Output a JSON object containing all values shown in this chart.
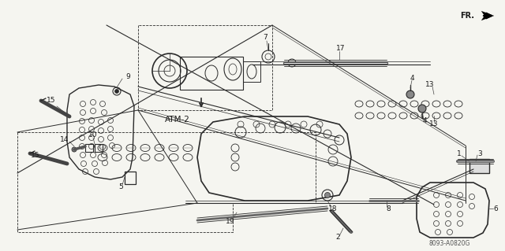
{
  "bg_color": "#f5f5f0",
  "line_color": "#2a2a2a",
  "label_color": "#1a1a1a",
  "fr_text": "FR.",
  "atm2_text": "ATM-2",
  "code_text": "8093-A0820G",
  "label_fs": 6.5,
  "code_fs": 5.5
}
